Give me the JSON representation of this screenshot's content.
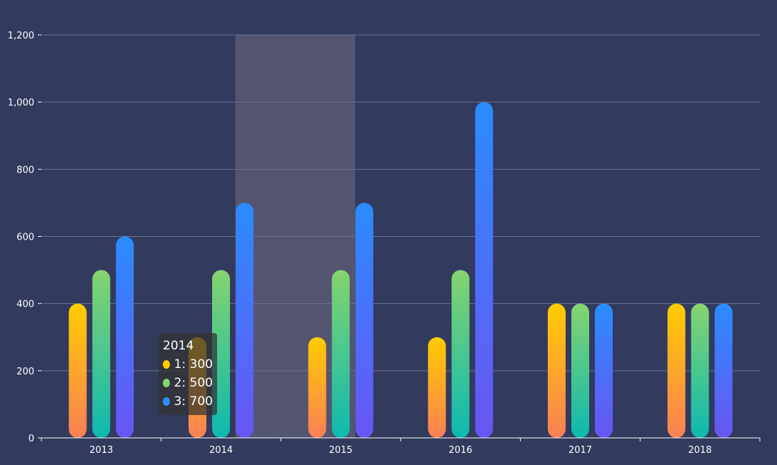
{
  "chart_data": {
    "type": "bar",
    "title": "",
    "xlabel": "",
    "ylabel": "",
    "categories": [
      "2013",
      "2014",
      "2015",
      "2016",
      "2017",
      "2018"
    ],
    "series": [
      {
        "name": "1",
        "values": [
          400,
          300,
          300,
          300,
          400,
          400
        ],
        "gradient": [
          "#ffcc00",
          "#fa8055"
        ],
        "legend_color": "#ffcc00"
      },
      {
        "name": "2",
        "values": [
          500,
          500,
          500,
          500,
          400,
          400
        ],
        "gradient": [
          "#86d46e",
          "#0cb9b0"
        ],
        "legend_color": "#86d46e"
      },
      {
        "name": "3",
        "values": [
          600,
          700,
          700,
          1000,
          400,
          400
        ],
        "gradient": [
          "#2a8cff",
          "#6a55f2"
        ],
        "legend_color": "#2a8cff"
      }
    ],
    "ylim": [
      0,
      1200
    ],
    "yticks": [
      0,
      200,
      400,
      600,
      800,
      1000,
      1200
    ],
    "ytick_labels": [
      "0",
      "200",
      "400",
      "600",
      "800",
      "1,000",
      "1,200"
    ],
    "grid": true,
    "highlighted_category": "2014",
    "tooltip": {
      "title": "2014",
      "rows": [
        "1: 300",
        "2: 500",
        "3: 700"
      ]
    }
  },
  "colors": {
    "background": "#323a5e",
    "grid": "#6b7295",
    "axis": "#ffffff",
    "highlight": "rgba(130, 125, 140, 0.42)"
  }
}
